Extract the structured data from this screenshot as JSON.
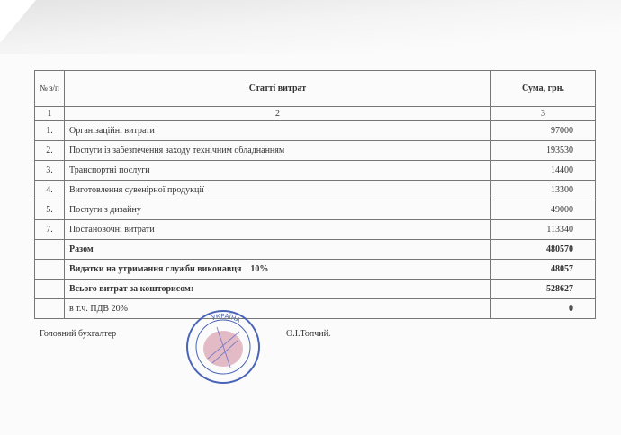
{
  "table": {
    "headers": [
      "№ з/п",
      "Статті витрат",
      "Сума, грн."
    ],
    "index_row": [
      "1",
      "2",
      "3"
    ],
    "rows": [
      {
        "no": "1.",
        "item": "Організаційні витрати",
        "sum": "97000"
      },
      {
        "no": "2.",
        "item": "Послуги із забезпечення заходу технічним обладнанням",
        "sum": "193530"
      },
      {
        "no": "3.",
        "item": "Транспортні послуги",
        "sum": "14400"
      },
      {
        "no": "4.",
        "item": "Виготовлення сувенірної продукції",
        "sum": "13300"
      },
      {
        "no": "5.",
        "item": "Послуги з  дизайну",
        "sum": "49000"
      },
      {
        "no": "7.",
        "item": "Постановочні витрати",
        "sum": "113340"
      }
    ],
    "totals": [
      {
        "item": "Разом",
        "sum": "480570"
      },
      {
        "item": "Видатки на утримання служби виконавця    10%",
        "sum": "48057"
      },
      {
        "item": "Всього витрат за кошторисом:",
        "sum": "528627"
      },
      {
        "item": "в т.ч. ПДВ 20%",
        "sum": "0"
      }
    ]
  },
  "signature": {
    "role": "Головний бухгалтер",
    "name": "О.І.Топчий."
  },
  "stamp": {
    "text": "УКРАЇНА"
  }
}
